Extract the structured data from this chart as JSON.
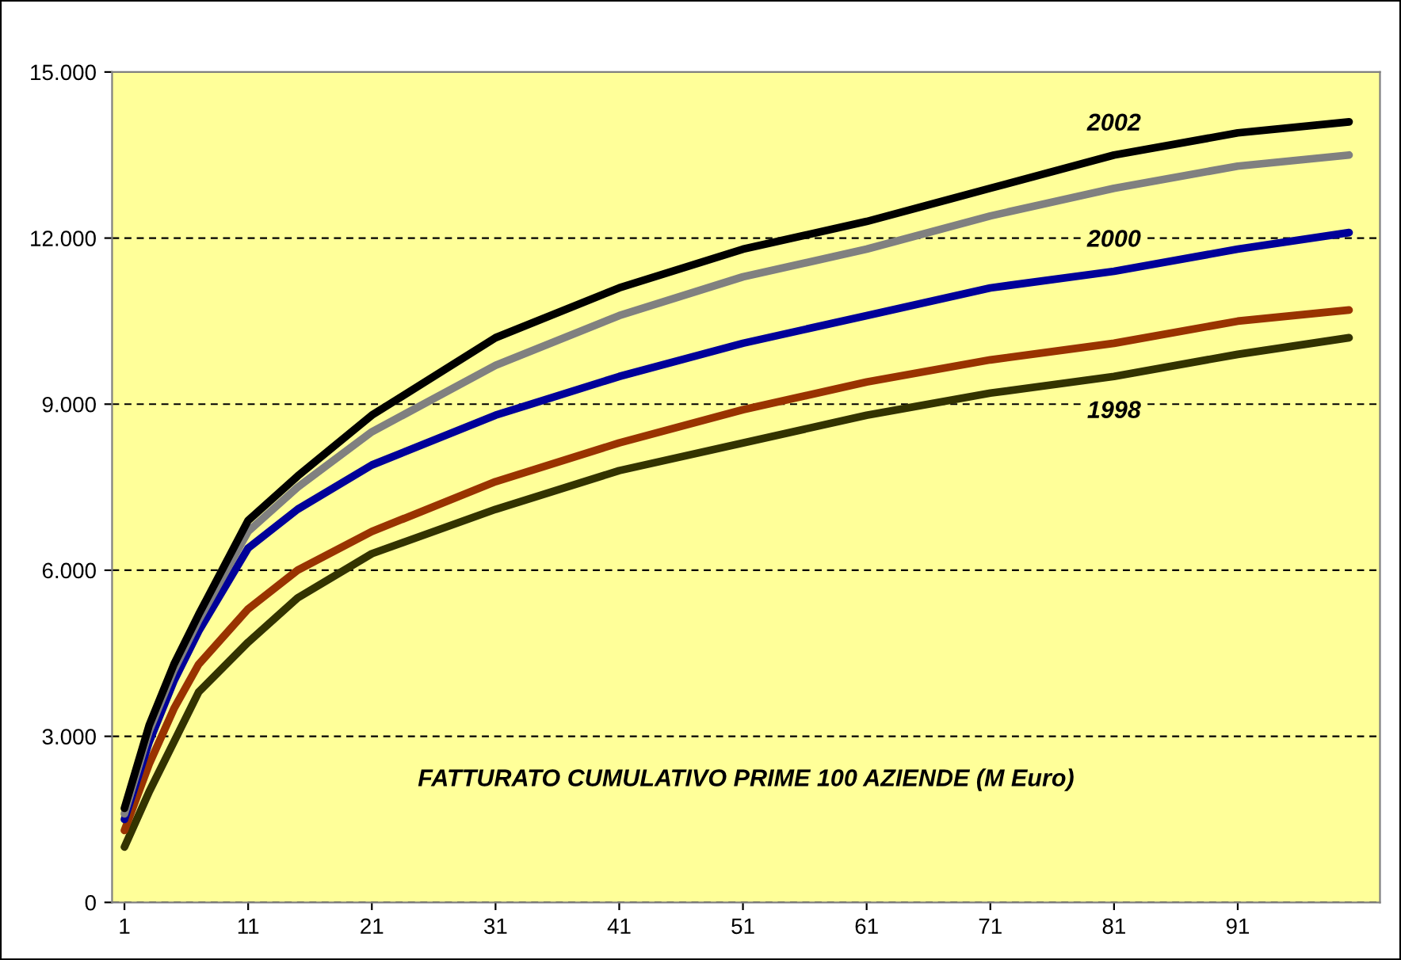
{
  "chart_data": {
    "type": "line",
    "title": "FATTURATO CUMULATIVO PRIME 100 AZIENDE (M Euro)",
    "x": [
      1,
      3,
      5,
      7,
      11,
      15,
      21,
      31,
      41,
      51,
      61,
      71,
      81,
      91,
      100
    ],
    "series": [
      {
        "name": "1998",
        "color": "#333300",
        "values": [
          1000,
          2000,
          2900,
          3800,
          4700,
          5500,
          6300,
          7100,
          7800,
          8300,
          8800,
          9200,
          9500,
          9900,
          10200
        ]
      },
      {
        "color": "#993300",
        "values": [
          1300,
          2500,
          3500,
          4300,
          5300,
          6000,
          6700,
          7600,
          8300,
          8900,
          9400,
          9800,
          10100,
          10500,
          10700
        ]
      },
      {
        "name": "2000",
        "color": "#000099",
        "values": [
          1500,
          2900,
          4000,
          4900,
          6400,
          7100,
          7900,
          8800,
          9500,
          10100,
          10600,
          11100,
          11400,
          11800,
          12100
        ]
      },
      {
        "color": "#808080",
        "values": [
          1600,
          3100,
          4200,
          5100,
          6700,
          7500,
          8500,
          9700,
          10600,
          11300,
          11800,
          12400,
          12900,
          13300,
          13500
        ]
      },
      {
        "name": "2002",
        "color": "#000000",
        "values": [
          1700,
          3200,
          4300,
          5200,
          6900,
          7700,
          8800,
          10200,
          11100,
          11800,
          12300,
          12900,
          13500,
          13900,
          14100
        ]
      }
    ],
    "xlim": [
      0,
      102.5
    ],
    "ylim": [
      0,
      15000
    ],
    "xticks": [
      1,
      11,
      21,
      31,
      41,
      51,
      61,
      71,
      81,
      91
    ],
    "yticks": [
      {
        "value": 0,
        "label": "0"
      },
      {
        "value": 3000,
        "label": "3.000"
      },
      {
        "value": 6000,
        "label": "6.000"
      },
      {
        "value": 9000,
        "label": "9.000"
      },
      {
        "value": 12000,
        "label": "12.000"
      },
      {
        "value": 15000,
        "label": "15.000"
      }
    ],
    "grid": "y",
    "legend": false,
    "marker": "none",
    "line_style": "solid"
  }
}
